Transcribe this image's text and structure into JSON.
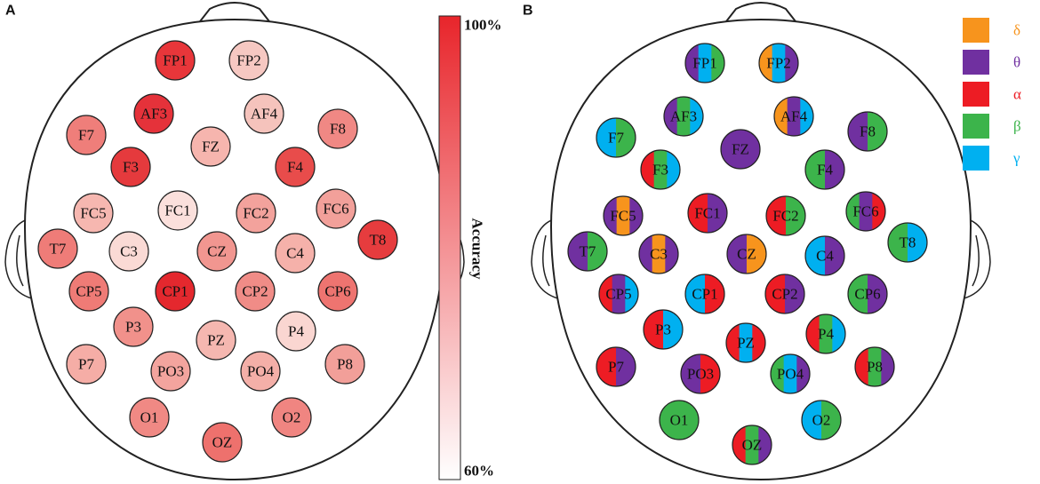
{
  "panel_a": {
    "label": "A",
    "electrodes": [
      {
        "name": "FP1",
        "color": "#e8363a"
      },
      {
        "name": "FP2",
        "color": "#f6c8c2"
      },
      {
        "name": "AF3",
        "color": "#e5323a"
      },
      {
        "name": "AF4",
        "color": "#f5c3bc"
      },
      {
        "name": "F7",
        "color": "#ef7e7a"
      },
      {
        "name": "F8",
        "color": "#f08884"
      },
      {
        "name": "FZ",
        "color": "#f6b5ae"
      },
      {
        "name": "F3",
        "color": "#e53a3d"
      },
      {
        "name": "F4",
        "color": "#e84c4b"
      },
      {
        "name": "FC5",
        "color": "#f6b7b0"
      },
      {
        "name": "FC1",
        "color": "#fbe0dc"
      },
      {
        "name": "FC2",
        "color": "#f3a29c"
      },
      {
        "name": "FC6",
        "color": "#f2a09a"
      },
      {
        "name": "T7",
        "color": "#ef7c78"
      },
      {
        "name": "C3",
        "color": "#fadad5"
      },
      {
        "name": "CZ",
        "color": "#f19690"
      },
      {
        "name": "C4",
        "color": "#f5b1aa"
      },
      {
        "name": "T8",
        "color": "#e63c3e"
      },
      {
        "name": "CP5",
        "color": "#ef7b76"
      },
      {
        "name": "CP1",
        "color": "#e4282e"
      },
      {
        "name": "CP2",
        "color": "#f08c87"
      },
      {
        "name": "CP6",
        "color": "#ee7470"
      },
      {
        "name": "P3",
        "color": "#f1918b"
      },
      {
        "name": "PZ",
        "color": "#f5b7b0"
      },
      {
        "name": "P4",
        "color": "#fad6d1"
      },
      {
        "name": "P7",
        "color": "#f5ada6"
      },
      {
        "name": "PO3",
        "color": "#f3a49e"
      },
      {
        "name": "PO4",
        "color": "#f4afa8"
      },
      {
        "name": "P8",
        "color": "#f29f99"
      },
      {
        "name": "O1",
        "color": "#f08984"
      },
      {
        "name": "OZ",
        "color": "#ee716d"
      },
      {
        "name": "O2",
        "color": "#f08581"
      }
    ],
    "colorbar": {
      "title": "Accuracy",
      "max_label": "100%",
      "min_label": "60%",
      "max_color": "#e8252b",
      "min_color": "#ffffff"
    }
  },
  "panel_b": {
    "label": "B",
    "legend": [
      {
        "symbol": "δ",
        "color": "#f7941d"
      },
      {
        "symbol": "θ",
        "color": "#7030a0"
      },
      {
        "symbol": "α",
        "color": "#ed1c24"
      },
      {
        "symbol": "β",
        "color": "#3cb44b"
      },
      {
        "symbol": "γ",
        "color": "#00b0f0"
      }
    ],
    "electrodes": [
      {
        "name": "FP1",
        "stripes": [
          "#7030a0",
          "#00b0f0",
          "#3cb44b"
        ]
      },
      {
        "name": "FP2",
        "stripes": [
          "#f7941d",
          "#00b0f0",
          "#7030a0"
        ]
      },
      {
        "name": "AF3",
        "stripes": [
          "#7030a0",
          "#3cb44b",
          "#00b0f0"
        ]
      },
      {
        "name": "AF4",
        "stripes": [
          "#f7941d",
          "#7030a0",
          "#00b0f0"
        ]
      },
      {
        "name": "F7",
        "stripes": [
          "#00b0f0",
          "#3cb44b"
        ]
      },
      {
        "name": "F8",
        "stripes": [
          "#7030a0",
          "#3cb44b"
        ]
      },
      {
        "name": "FZ",
        "stripes": [
          "#7030a0"
        ]
      },
      {
        "name": "F3",
        "stripes": [
          "#ed1c24",
          "#3cb44b",
          "#00b0f0"
        ]
      },
      {
        "name": "F4",
        "stripes": [
          "#3cb44b",
          "#7030a0"
        ]
      },
      {
        "name": "FC5",
        "stripes": [
          "#7030a0",
          "#f7941d",
          "#7030a0"
        ]
      },
      {
        "name": "FC1",
        "stripes": [
          "#ed1c24",
          "#7030a0"
        ]
      },
      {
        "name": "FC2",
        "stripes": [
          "#ed1c24",
          "#3cb44b"
        ]
      },
      {
        "name": "FC6",
        "stripes": [
          "#3cb44b",
          "#7030a0",
          "#ed1c24"
        ]
      },
      {
        "name": "T7",
        "stripes": [
          "#7030a0",
          "#3cb44b"
        ]
      },
      {
        "name": "C3",
        "stripes": [
          "#7030a0",
          "#f7941d",
          "#7030a0"
        ]
      },
      {
        "name": "CZ",
        "stripes": [
          "#7030a0",
          "#f7941d"
        ]
      },
      {
        "name": "C4",
        "stripes": [
          "#00b0f0",
          "#7030a0"
        ]
      },
      {
        "name": "T8",
        "stripes": [
          "#3cb44b",
          "#00b0f0"
        ]
      },
      {
        "name": "CP5",
        "stripes": [
          "#ed1c24",
          "#7030a0",
          "#00b0f0"
        ]
      },
      {
        "name": "CP1",
        "stripes": [
          "#00b0f0",
          "#ed1c24"
        ]
      },
      {
        "name": "CP2",
        "stripes": [
          "#ed1c24",
          "#7030a0"
        ]
      },
      {
        "name": "CP6",
        "stripes": [
          "#3cb44b",
          "#7030a0"
        ]
      },
      {
        "name": "P3",
        "stripes": [
          "#ed1c24",
          "#00b0f0"
        ]
      },
      {
        "name": "PZ",
        "stripes": [
          "#ed1c24",
          "#00b0f0",
          "#ed1c24"
        ]
      },
      {
        "name": "P4",
        "stripes": [
          "#ed1c24",
          "#3cb44b",
          "#00b0f0"
        ]
      },
      {
        "name": "P7",
        "stripes": [
          "#ed1c24",
          "#7030a0"
        ]
      },
      {
        "name": "PO3",
        "stripes": [
          "#7030a0",
          "#ed1c24"
        ]
      },
      {
        "name": "PO4",
        "stripes": [
          "#3cb44b",
          "#00b0f0",
          "#7030a0"
        ]
      },
      {
        "name": "P8",
        "stripes": [
          "#ed1c24",
          "#3cb44b",
          "#7030a0"
        ]
      },
      {
        "name": "O1",
        "stripes": [
          "#3cb44b"
        ]
      },
      {
        "name": "OZ",
        "stripes": [
          "#ed1c24",
          "#3cb44b",
          "#7030a0"
        ]
      },
      {
        "name": "O2",
        "stripes": [
          "#00b0f0",
          "#3cb44b"
        ]
      }
    ]
  }
}
